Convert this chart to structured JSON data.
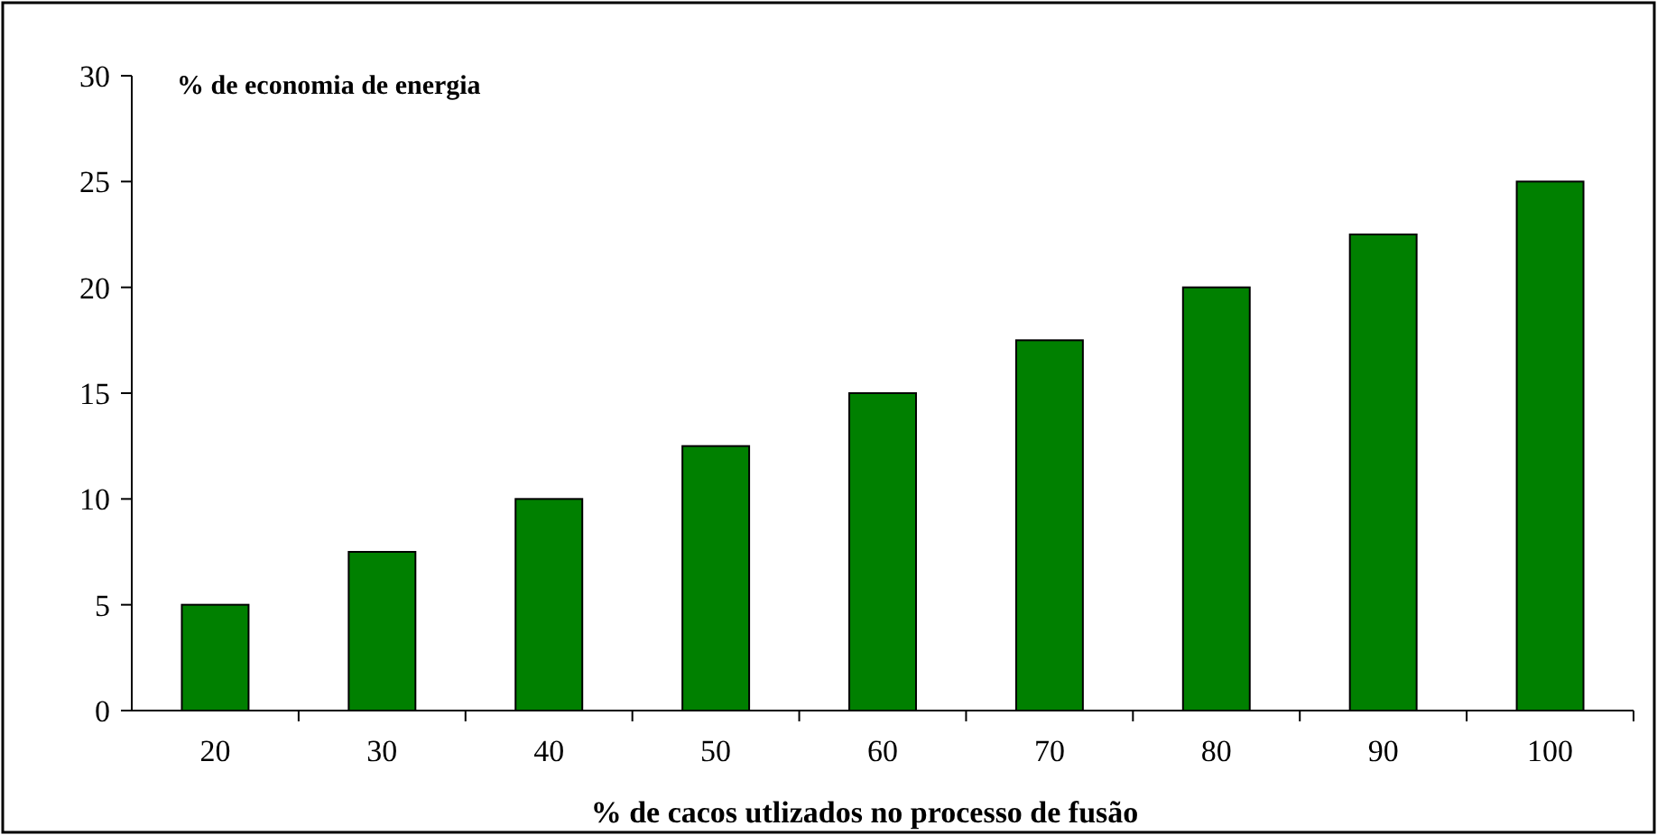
{
  "chart_data": {
    "type": "bar",
    "title": "% de economia de energia",
    "xlabel": "% de cacos utlizados no processo de fusão",
    "categories": [
      "20",
      "30",
      "40",
      "50",
      "60",
      "70",
      "80",
      "90",
      "100"
    ],
    "values": [
      5,
      7.5,
      10,
      12.5,
      15,
      17.5,
      20,
      22.5,
      25
    ],
    "color": "#008000",
    "ylim": [
      0,
      30
    ],
    "yticks": [
      0,
      5,
      10,
      15,
      20,
      25,
      30
    ],
    "grid": false
  }
}
